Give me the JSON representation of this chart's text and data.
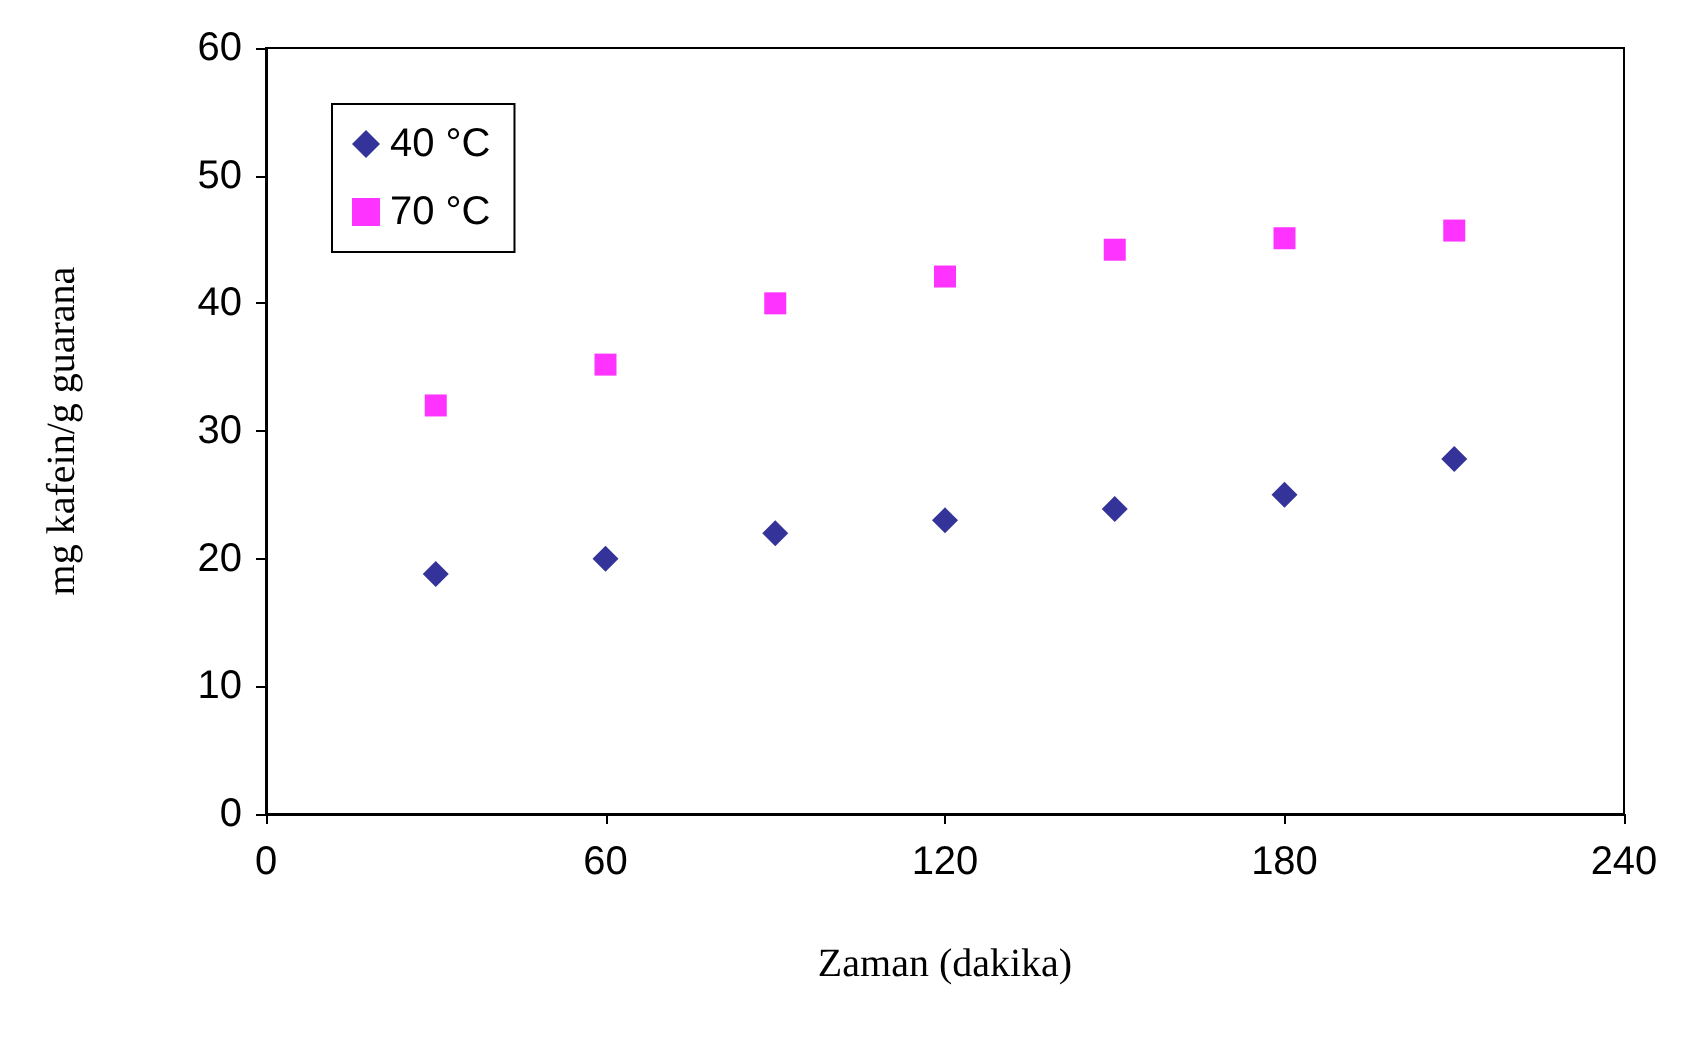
{
  "chart_data": {
    "type": "scatter",
    "xlabel": "Zaman (dakika)",
    "ylabel": "mg kafein/g guarana",
    "x": [
      30,
      60,
      90,
      120,
      150,
      180,
      210
    ],
    "series": [
      {
        "name": "40 °C",
        "color": "#000080",
        "marker": "diamond",
        "values": [
          18.8,
          20.0,
          22.0,
          23.0,
          23.9,
          25.0,
          27.8
        ]
      },
      {
        "name": "70 °C",
        "color": "#ff00ff",
        "marker": "square",
        "values": [
          32.0,
          35.2,
          40.0,
          42.1,
          44.2,
          45.1,
          45.7
        ]
      }
    ],
    "xlim": [
      0,
      240
    ],
    "xticks": [
      0,
      60,
      120,
      180,
      240
    ],
    "ylim": [
      0,
      60
    ],
    "yticks": [
      0,
      10,
      20,
      30,
      40,
      50,
      60
    ],
    "grid": false,
    "legend": "top left"
  }
}
